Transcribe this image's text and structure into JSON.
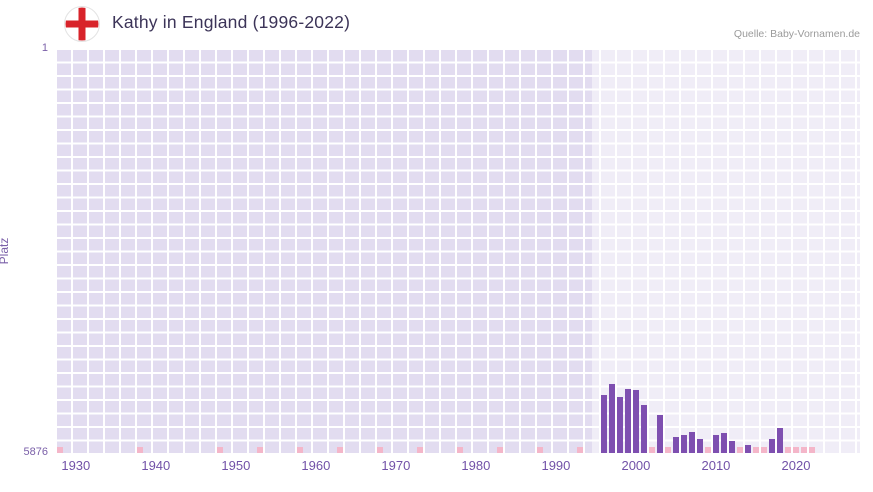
{
  "header": {
    "title": "Kathy in England (1996-2022)",
    "source": "Quelle: Baby-Vornamen.de",
    "flag_icon": "england-flag-icon"
  },
  "chart_data": {
    "type": "bar",
    "title": "Kathy in England (1996-2022)",
    "ylabel": "Platz",
    "y_axis": {
      "top_label": "1",
      "bottom_label": "5876",
      "min": 1,
      "max": 5876,
      "inverted": true
    },
    "x_axis": {
      "ticks": [
        1930,
        1940,
        1950,
        1960,
        1970,
        1980,
        1990,
        2000,
        2010,
        2020
      ],
      "domain": [
        1927.4,
        2028.0
      ]
    },
    "highlight_range": [
      1994.5,
      2028.0
    ],
    "grid": true,
    "legend": false,
    "bars": [
      {
        "year": 1996,
        "rank": 5030
      },
      {
        "year": 1997,
        "rank": 4870
      },
      {
        "year": 1998,
        "rank": 5060
      },
      {
        "year": 1999,
        "rank": 4950
      },
      {
        "year": 2000,
        "rank": 4960
      },
      {
        "year": 2001,
        "rank": 5180
      },
      {
        "year": 2003,
        "rank": 5330
      },
      {
        "year": 2005,
        "rank": 5650
      },
      {
        "year": 2006,
        "rank": 5610
      },
      {
        "year": 2007,
        "rank": 5570
      },
      {
        "year": 2008,
        "rank": 5670
      },
      {
        "year": 2010,
        "rank": 5610
      },
      {
        "year": 2011,
        "rank": 5590
      },
      {
        "year": 2012,
        "rank": 5700
      },
      {
        "year": 2014,
        "rank": 5760
      },
      {
        "year": 2017,
        "rank": 5670
      },
      {
        "year": 2018,
        "rank": 5510
      }
    ],
    "no_data_years": [
      1928,
      1938,
      1948,
      1953,
      1958,
      1963,
      1968,
      1973,
      1978,
      1983,
      1988,
      1993,
      2002,
      2004,
      2009,
      2013,
      2015,
      2016,
      2019,
      2020,
      2021,
      2022
    ],
    "colors": {
      "bar": "#7e4fb0",
      "marker": "#f4b6c9",
      "grid_base": "#e2dcf0",
      "grid_line": "#ffffff",
      "highlight": "rgba(255,255,255,0.48)",
      "axis_text": "#7252a8",
      "title_text": "#3c3458",
      "source_text": "#9b9b9b",
      "flag_red": "#d8232a"
    }
  }
}
